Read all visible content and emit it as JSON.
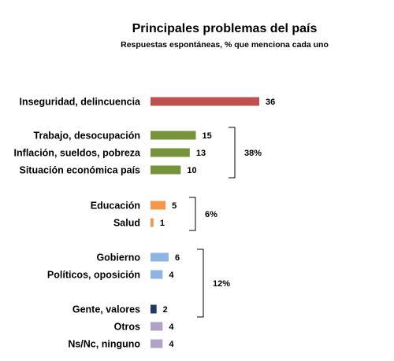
{
  "chart_data": {
    "type": "bar",
    "orientation": "horizontal",
    "title": "Principales problemas del país",
    "subtitle": "Respuestas espontáneas, % que menciona cada uno",
    "categories": [
      "Inseguridad, delincuencia",
      "Trabajo, desocupación",
      "Inflación, sueldos, pobreza",
      "Situación económica país",
      "Educación",
      "Salud",
      "Gobierno",
      "Políticos, oposición",
      "Gente, valores",
      "Otros",
      "Ns/Nc, ninguno"
    ],
    "values": [
      36,
      15,
      13,
      10,
      5,
      1,
      6,
      4,
      2,
      4,
      4
    ],
    "value_labels": [
      "36",
      "15",
      "13",
      "10",
      "5",
      "1",
      "6",
      "4",
      "2",
      "4",
      "4"
    ],
    "bar_colors": [
      "#C0504D",
      "#77933C",
      "#77933C",
      "#77933C",
      "#F79646",
      "#F79646",
      "#8DB4E2",
      "#8DB4E2",
      "#1F3864",
      "#B3A2C7",
      "#B3A2C7"
    ],
    "groups": [
      {
        "label": "38%",
        "first": 1,
        "last": 3
      },
      {
        "label": "6%",
        "first": 4,
        "last": 5
      },
      {
        "label": "12%",
        "first": 6,
        "last": 8
      }
    ],
    "xlim": [
      0,
      36
    ],
    "grid": false,
    "legend": "none"
  }
}
